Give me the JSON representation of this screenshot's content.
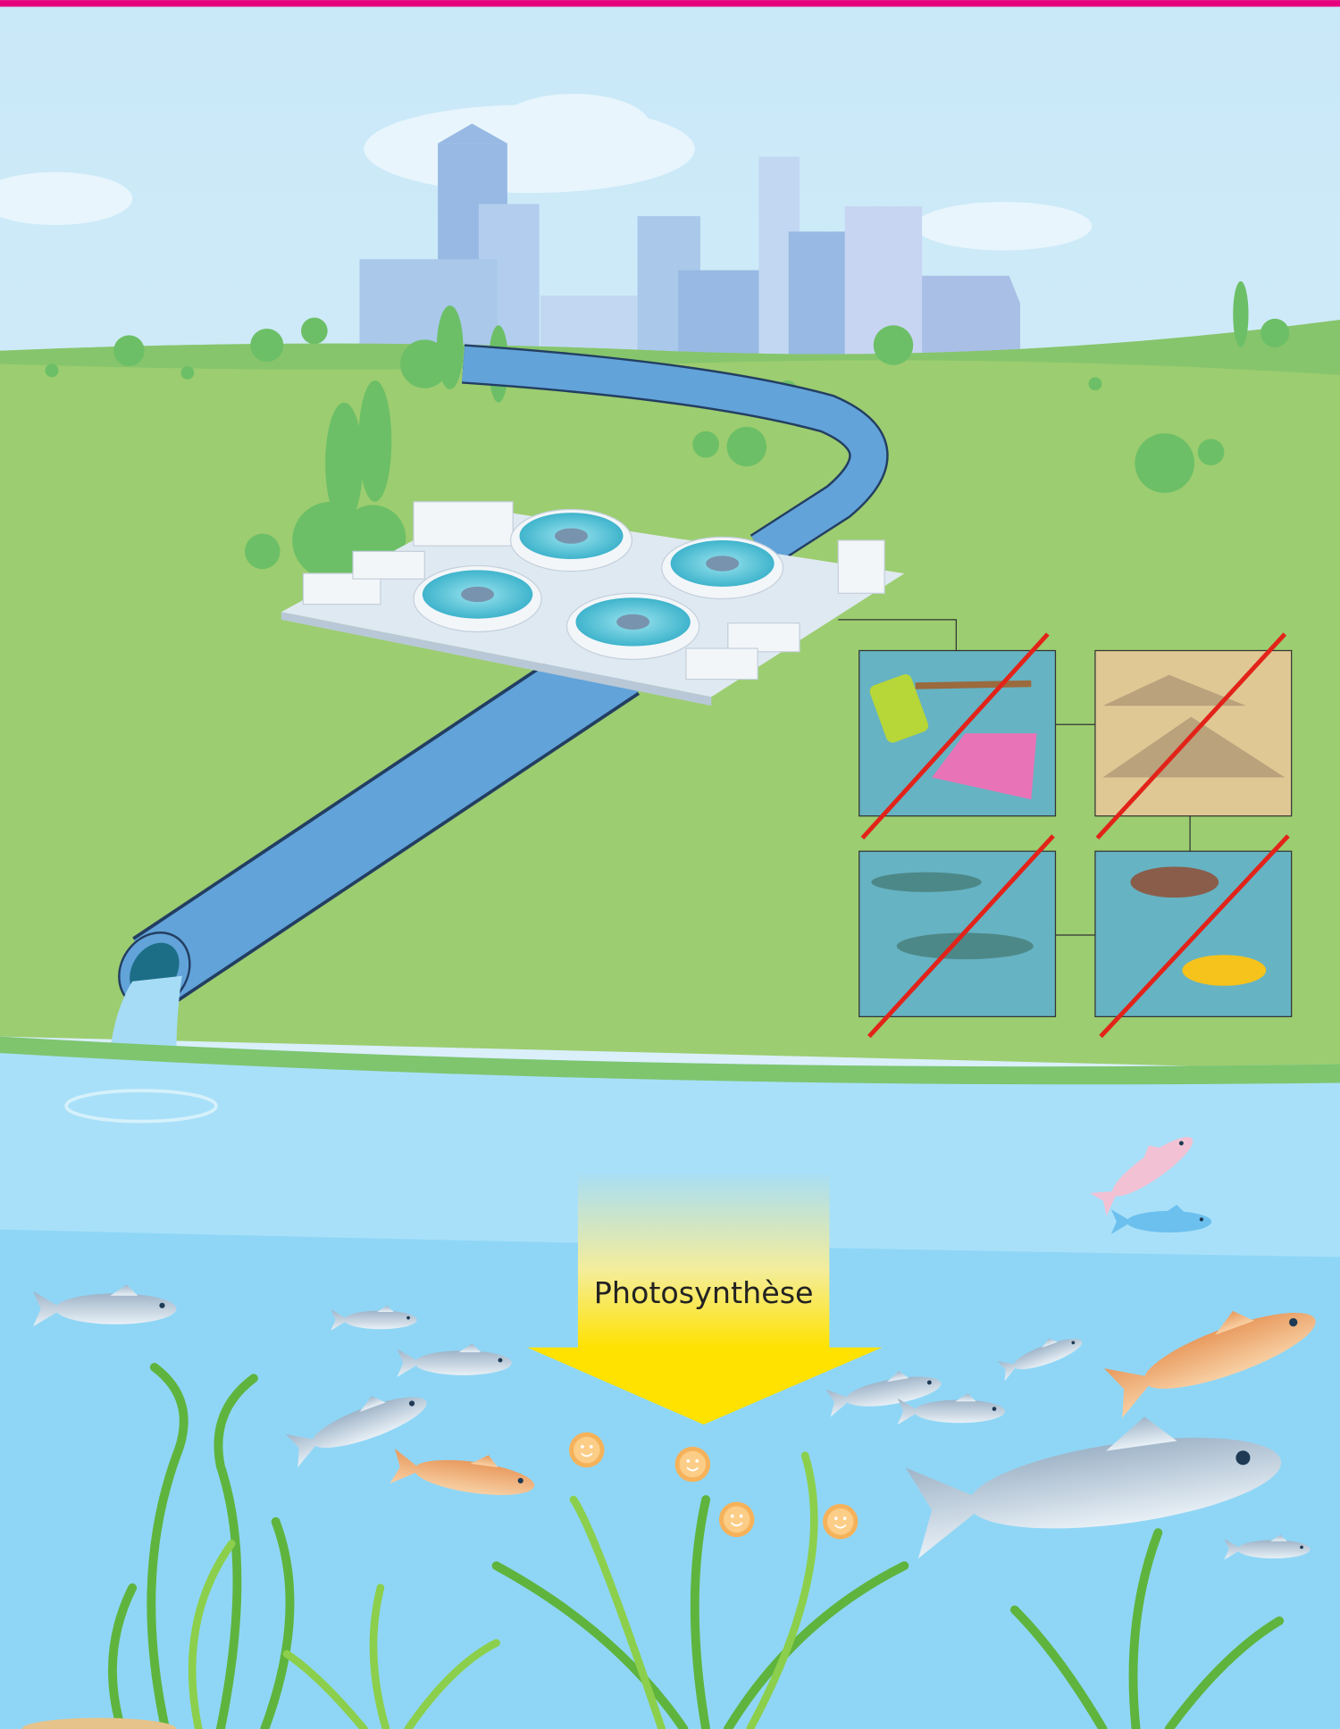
{
  "arrow": {
    "label": "Photosynthèse"
  }
}
